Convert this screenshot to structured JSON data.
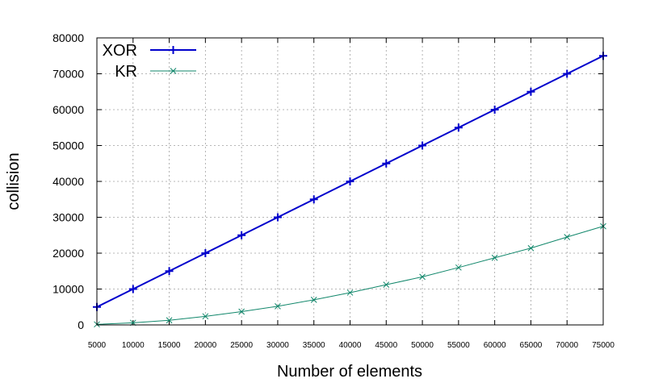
{
  "chart_data": {
    "type": "line",
    "title": "",
    "xlabel": "Number of elements",
    "ylabel": "collision",
    "xlim": [
      5000,
      75000
    ],
    "ylim": [
      0,
      80000
    ],
    "grid": true,
    "legend_position": "top-left",
    "x": [
      5000,
      10000,
      15000,
      20000,
      25000,
      30000,
      35000,
      40000,
      45000,
      50000,
      55000,
      60000,
      65000,
      70000,
      75000
    ],
    "x_ticks": [
      "5000",
      "10000",
      "15000",
      "20000",
      "25000",
      "30000",
      "35000",
      "40000",
      "45000",
      "50000",
      "55000",
      "60000",
      "65000",
      "70000",
      "75000"
    ],
    "y_ticks": [
      "0",
      "10000",
      "20000",
      "30000",
      "40000",
      "50000",
      "60000",
      "70000",
      "80000"
    ],
    "series": [
      {
        "name": "XOR",
        "color": "#0000cc",
        "marker": "plus",
        "values": [
          5000,
          10000,
          15000,
          20000,
          25000,
          30000,
          35000,
          40000,
          45000,
          50000,
          55000,
          60000,
          65000,
          70000,
          75000
        ]
      },
      {
        "name": "KR",
        "color": "#11876b",
        "marker": "cross",
        "values": [
          150,
          600,
          1300,
          2400,
          3700,
          5200,
          7000,
          9000,
          11200,
          13400,
          16000,
          18700,
          21400,
          24500,
          27500
        ]
      }
    ]
  }
}
